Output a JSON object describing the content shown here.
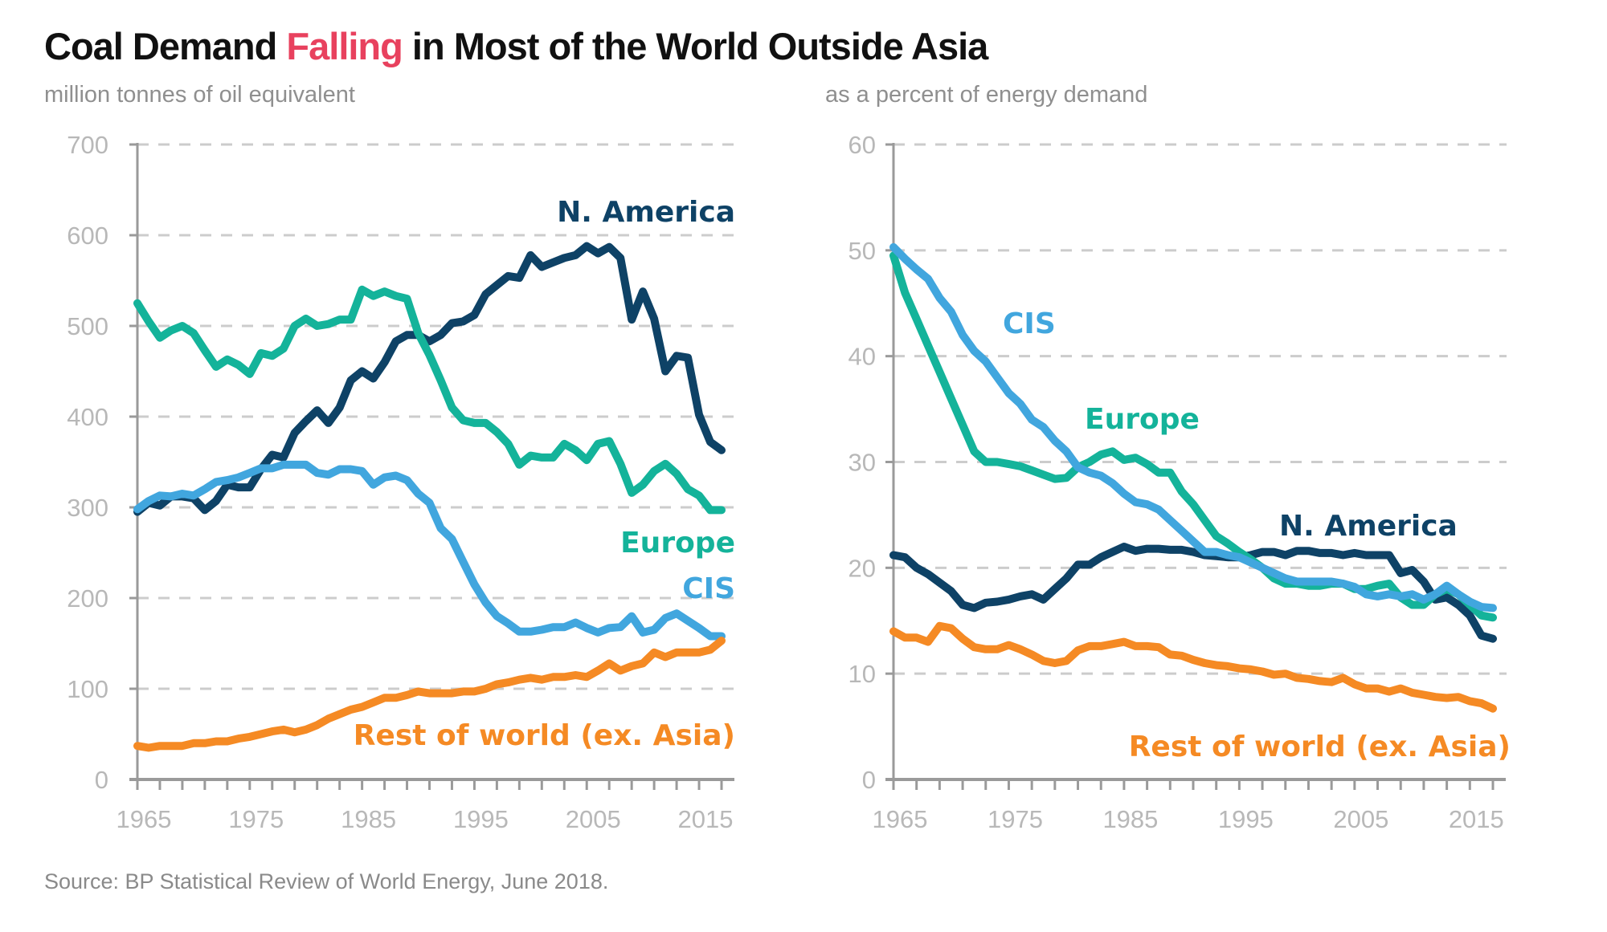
{
  "title": {
    "prefix": "Coal Demand ",
    "highlight": "Falling",
    "suffix": " in Most of the World Outside Asia",
    "highlight_color": "#e8415e"
  },
  "source": "Source: BP Statistical Review of World Energy, June 2018.",
  "colors": {
    "n_america": "#0e4266",
    "europe": "#14b39a",
    "cis": "#41a6de",
    "rest": "#f58a24",
    "axis": "#9a9a9a",
    "grid": "#cccccc"
  },
  "chart_data": [
    {
      "type": "line",
      "title": "",
      "subtitle": "million tonnes of oil equivalent",
      "xlabel": "",
      "ylabel": "million tonnes of oil equivalent",
      "x_start": 1965,
      "x_end": 2017,
      "xlim": [
        1965,
        2017
      ],
      "ylim": [
        0,
        700
      ],
      "yticks": [
        0,
        100,
        200,
        300,
        400,
        500,
        600,
        700
      ],
      "xtick_labels": [
        "1965",
        "1975",
        "1985",
        "1995",
        "2005",
        "2015"
      ],
      "grid": "horizontal dashed",
      "series": [
        {
          "key": "n_america",
          "name": "N. America",
          "label_pos": "top-right",
          "values": [
            295,
            305,
            302,
            312,
            312,
            310,
            297,
            307,
            325,
            322,
            322,
            342,
            358,
            355,
            382,
            395,
            407,
            393,
            410,
            440,
            450,
            442,
            460,
            483,
            490,
            490,
            483,
            490,
            503,
            505,
            512,
            535,
            545,
            555,
            553,
            578,
            565,
            570,
            575,
            578,
            588,
            580,
            587,
            575,
            507,
            538,
            508,
            450,
            467,
            465,
            402,
            372,
            363
          ]
        },
        {
          "key": "europe",
          "name": "Europe",
          "label_pos": "right-middle",
          "values": [
            525,
            505,
            487,
            495,
            500,
            492,
            473,
            455,
            463,
            457,
            447,
            470,
            467,
            475,
            500,
            508,
            500,
            502,
            507,
            507,
            540,
            533,
            538,
            533,
            530,
            492,
            468,
            440,
            410,
            396,
            393,
            393,
            383,
            370,
            347,
            357,
            355,
            355,
            370,
            363,
            352,
            370,
            373,
            348,
            316,
            325,
            340,
            348,
            337,
            320,
            313,
            297,
            297
          ]
        },
        {
          "key": "cis",
          "name": "CIS",
          "label_pos": "right-middle",
          "values": [
            298,
            307,
            313,
            312,
            315,
            313,
            320,
            328,
            330,
            333,
            338,
            343,
            343,
            347,
            347,
            347,
            338,
            336,
            342,
            342,
            340,
            325,
            333,
            335,
            330,
            315,
            305,
            277,
            265,
            240,
            215,
            195,
            180,
            172,
            163,
            163,
            165,
            168,
            168,
            173,
            167,
            162,
            167,
            168,
            180,
            162,
            165,
            178,
            183,
            175,
            167,
            158,
            158
          ]
        },
        {
          "key": "rest",
          "name": "Rest of world (ex. Asia)",
          "label_pos": "bottom-right",
          "values": [
            37,
            35,
            37,
            37,
            37,
            40,
            40,
            42,
            42,
            45,
            47,
            50,
            53,
            55,
            52,
            55,
            60,
            67,
            72,
            77,
            80,
            85,
            90,
            90,
            93,
            97,
            95,
            95,
            95,
            97,
            97,
            100,
            105,
            107,
            110,
            112,
            110,
            113,
            113,
            115,
            113,
            120,
            128,
            120,
            125,
            128,
            140,
            135,
            140,
            140,
            140,
            143,
            153
          ]
        }
      ],
      "end_values_note": "",
      "labels": {
        "n_america": "N. America",
        "europe": "Europe",
        "cis": "CIS",
        "rest": "Rest of world (ex. Asia)"
      }
    },
    {
      "type": "line",
      "title": "",
      "subtitle": "as a percent of energy demand",
      "xlabel": "",
      "ylabel": "as a percent of energy demand",
      "x_start": 1965,
      "x_end": 2017,
      "xlim": [
        1965,
        2017
      ],
      "ylim": [
        0,
        60
      ],
      "yticks": [
        0,
        10,
        20,
        30,
        40,
        50,
        60
      ],
      "xtick_labels": [
        "1965",
        "1975",
        "1985",
        "1995",
        "2005",
        "2015"
      ],
      "grid": "horizontal dashed",
      "series": [
        {
          "key": "n_america",
          "name": "N. America",
          "label_pos": "center-right",
          "values": [
            21.2,
            21.0,
            20.0,
            19.4,
            18.6,
            17.8,
            16.5,
            16.2,
            16.7,
            16.8,
            17.0,
            17.3,
            17.5,
            17.0,
            18.0,
            19.0,
            20.3,
            20.3,
            21.0,
            21.5,
            22.0,
            21.6,
            21.8,
            21.8,
            21.7,
            21.7,
            21.5,
            21.2,
            21.1,
            21.0,
            21.0,
            21.2,
            21.5,
            21.5,
            21.2,
            21.6,
            21.6,
            21.4,
            21.4,
            21.2,
            21.4,
            21.2,
            21.2,
            21.2,
            19.5,
            19.8,
            18.7,
            17.0,
            17.2,
            16.5,
            15.5,
            13.6,
            13.3
          ]
        },
        {
          "key": "europe",
          "name": "Europe",
          "label_pos": "center",
          "values": [
            49.5,
            46.0,
            43.5,
            41.0,
            38.5,
            36.0,
            33.5,
            31.0,
            30.0,
            30.0,
            29.8,
            29.6,
            29.2,
            28.8,
            28.4,
            28.5,
            29.5,
            30.0,
            30.7,
            31.0,
            30.2,
            30.4,
            29.8,
            29.0,
            29.0,
            27.2,
            26.0,
            24.5,
            23.0,
            22.3,
            21.5,
            20.8,
            20.0,
            19.0,
            18.5,
            18.5,
            18.3,
            18.3,
            18.5,
            18.5,
            18.0,
            18.0,
            18.3,
            18.5,
            17.2,
            16.5,
            16.5,
            17.5,
            18.0,
            17.5,
            16.5,
            15.5,
            15.3
          ]
        },
        {
          "key": "cis",
          "name": "CIS",
          "label_pos": "upper",
          "values": [
            50.3,
            49.2,
            48.2,
            47.3,
            45.5,
            44.2,
            42.0,
            40.5,
            39.5,
            38.0,
            36.5,
            35.5,
            34.0,
            33.3,
            32.0,
            31.0,
            29.5,
            29.0,
            28.7,
            28.0,
            27.0,
            26.2,
            26.0,
            25.5,
            24.5,
            23.5,
            22.5,
            21.5,
            21.5,
            21.2,
            21.0,
            20.5,
            20.0,
            19.5,
            19.0,
            18.7,
            18.7,
            18.7,
            18.7,
            18.5,
            18.2,
            17.5,
            17.3,
            17.5,
            17.3,
            17.5,
            17.0,
            17.5,
            18.3,
            17.5,
            16.8,
            16.3,
            16.2
          ]
        },
        {
          "key": "rest",
          "name": "Rest of world (ex. Asia)",
          "label_pos": "bottom-right",
          "values": [
            14.0,
            13.4,
            13.4,
            13.0,
            14.5,
            14.3,
            13.3,
            12.5,
            12.3,
            12.3,
            12.7,
            12.3,
            11.8,
            11.2,
            11.0,
            11.2,
            12.2,
            12.6,
            12.6,
            12.8,
            13.0,
            12.6,
            12.6,
            12.5,
            11.8,
            11.7,
            11.3,
            11.0,
            10.8,
            10.7,
            10.5,
            10.4,
            10.2,
            9.9,
            10.0,
            9.6,
            9.5,
            9.3,
            9.2,
            9.6,
            9.0,
            8.6,
            8.6,
            8.3,
            8.6,
            8.2,
            8.0,
            7.8,
            7.7,
            7.8,
            7.4,
            7.2,
            6.7
          ]
        }
      ],
      "labels": {
        "n_america": "N. America",
        "europe": "Europe",
        "cis": "CIS",
        "rest": "Rest of world (ex. Asia)"
      }
    }
  ]
}
